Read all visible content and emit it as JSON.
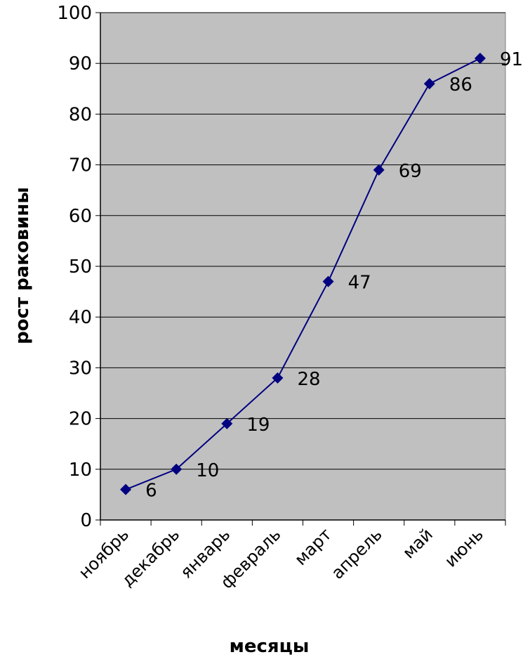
{
  "chart_data": {
    "type": "line",
    "categories": [
      "ноябрь",
      "декабрь",
      "январь",
      "февраль",
      "март",
      "апрель",
      "май",
      "июнь"
    ],
    "series": [
      {
        "values": [
          6,
          10,
          19,
          28,
          47,
          69,
          86,
          91
        ]
      }
    ],
    "data_labels": [
      "6",
      "10",
      "19",
      "28",
      "47",
      "69",
      "86",
      "91"
    ],
    "title": "",
    "xlabel": "месяцы",
    "ylabel": "рост раковины",
    "ylim": [
      0,
      100
    ],
    "yticks": [
      0,
      10,
      20,
      30,
      40,
      50,
      60,
      70,
      80,
      90,
      100
    ],
    "ytick_labels": [
      "0",
      "10",
      "20",
      "30",
      "40",
      "50",
      "60",
      "70",
      "80",
      "90",
      "100"
    ],
    "grid": true,
    "legend": "none",
    "colors": {
      "plot_background": "#c0c0c0",
      "line": "#000080",
      "marker": "#000080",
      "gridline": "#000000"
    }
  }
}
